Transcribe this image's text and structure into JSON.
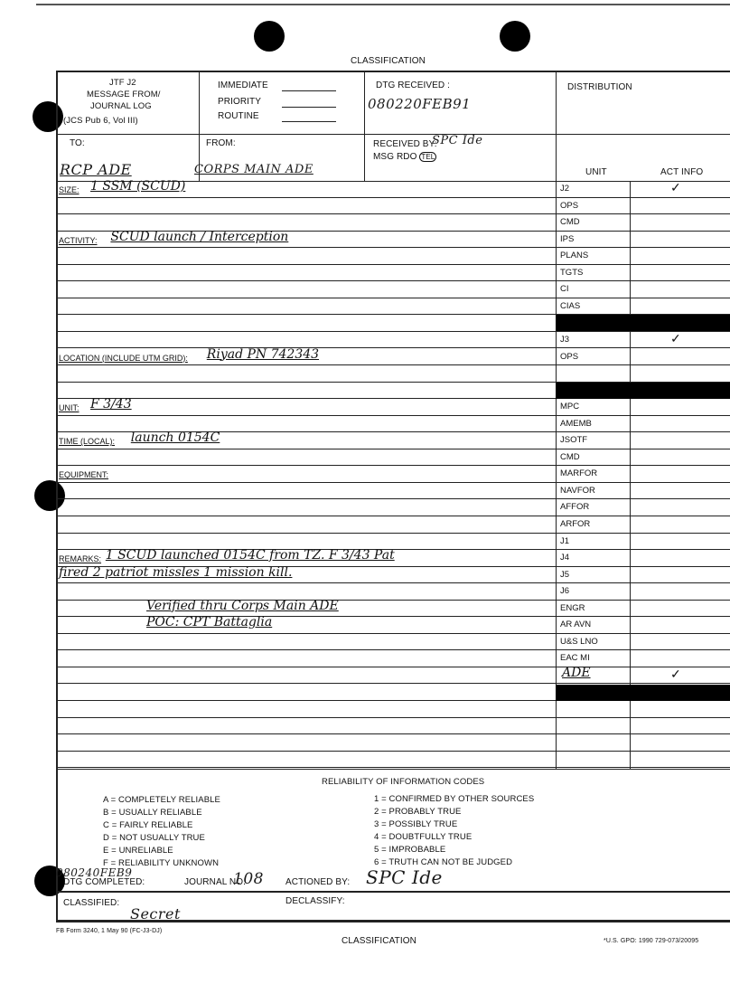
{
  "header": {
    "classification_top": "CLASSIFICATION",
    "classification_bottom": "CLASSIFICATION"
  },
  "form": {
    "title_lines": [
      "JTF J2",
      "MESSAGE FROM/",
      "JOURNAL LOG",
      "(JCS Pub 6, Vol III)"
    ],
    "precedence": [
      "IMMEDIATE",
      "PRIORITY",
      "ROUTINE"
    ],
    "dtg_received_label": "DTG RECEIVED :",
    "dtg_received_value": "080220FEB91",
    "distribution_label": "DISTRIBUTION",
    "to_label": "TO:",
    "to_value": "RCP ADE",
    "from_label": "FROM:",
    "from_value": "CORPS MAIN ADE",
    "received_by_label": "RECEIVED BY:",
    "received_by_value": "SPC Ide",
    "msg_rdo_label": "MSG RDO",
    "msg_rdo_circled": "TEL",
    "unit_header": "UNIT",
    "act_info_header": "ACT INFO"
  },
  "rows": [
    {
      "label": "SIZE:",
      "value": "1 SSM (SCUD)",
      "unit": "J2",
      "act": "✓"
    },
    {
      "unit": "OPS"
    },
    {
      "unit": "CMD"
    },
    {
      "label": "ACTIVITY:",
      "value": "SCUD launch / Interception",
      "unit": "IPS"
    },
    {
      "unit": "PLANS"
    },
    {
      "unit": "TGTS"
    },
    {
      "unit": "CI"
    },
    {
      "unit": "CIAS"
    },
    {
      "bar": true
    },
    {
      "unit": "J3",
      "act": "✓"
    },
    {
      "label": "LOCATION (INCLUDE UTM GRID):",
      "value": "Riyad PN 742343",
      "unit": "OPS"
    },
    {},
    {
      "bar": true
    },
    {
      "label": "UNIT:",
      "value": "F 3/43",
      "unit": "MPC"
    },
    {
      "unit": "AMEMB"
    },
    {
      "label": "TIME (LOCAL):",
      "value": "launch 0154C",
      "unit": "JSOTF"
    },
    {
      "unit": "CMD"
    },
    {
      "label": "EQUIPMENT:",
      "unit": "MARFOR"
    },
    {
      "unit": "NAVFOR"
    },
    {
      "unit": "AFFOR"
    },
    {
      "unit": "ARFOR"
    },
    {
      "unit": "J1"
    },
    {
      "label": "REMARKS:",
      "value": "1 SCUD launched 0154C from TZ. F 3/43 Pat",
      "unit": "J4"
    },
    {
      "value": "fired 2 patriot missles 1 mission kill.",
      "unit": "J5"
    },
    {
      "unit": "J6"
    },
    {
      "value": "Verified thru Corps Main ADE",
      "indent": true,
      "unit": "ENGR"
    },
    {
      "value": "POC: CPT Battaglia",
      "indent": true,
      "unit": "AR AVN"
    },
    {
      "unit": "U&S LNO"
    },
    {
      "unit": "EAC MI"
    },
    {
      "unit_hw": "ADE",
      "act": "✓"
    },
    {
      "bar": true
    },
    {},
    {},
    {},
    {}
  ],
  "reliability": {
    "title": "RELIABILITY OF INFORMATION CODES",
    "source_codes": [
      "A = COMPLETELY RELIABLE",
      "B = USUALLY RELIABLE",
      "C = FAIRLY RELIABLE",
      "D = NOT USUALLY TRUE",
      "E = UNRELIABLE",
      "F = RELIABILITY UNKNOWN"
    ],
    "info_codes": [
      "1 = CONFIRMED BY OTHER SOURCES",
      "2 = PROBABLY TRUE",
      "3 = POSSIBLY TRUE",
      "4 = DOUBTFULLY TRUE",
      "5 = IMPROBABLE",
      "6 = TRUTH CAN NOT BE JUDGED"
    ]
  },
  "footer": {
    "dtg_completed_label": "DTG COMPLETED:",
    "dtg_completed_value": "080240FEB9",
    "journal_no_label": "JOURNAL NO.",
    "journal_no_value": "108",
    "actioned_by_label": "ACTIONED BY:",
    "actioned_by_value": "SPC Ide",
    "classified_label": "CLASSIFIED:",
    "classified_value": "Secret",
    "declassify_label": "DECLASSIFY:",
    "form_number": "FB Form 3240, 1 May 90 (FC-J3-DJ)",
    "gpo": "*U.S. GPO: 1990 729-073/20095"
  }
}
